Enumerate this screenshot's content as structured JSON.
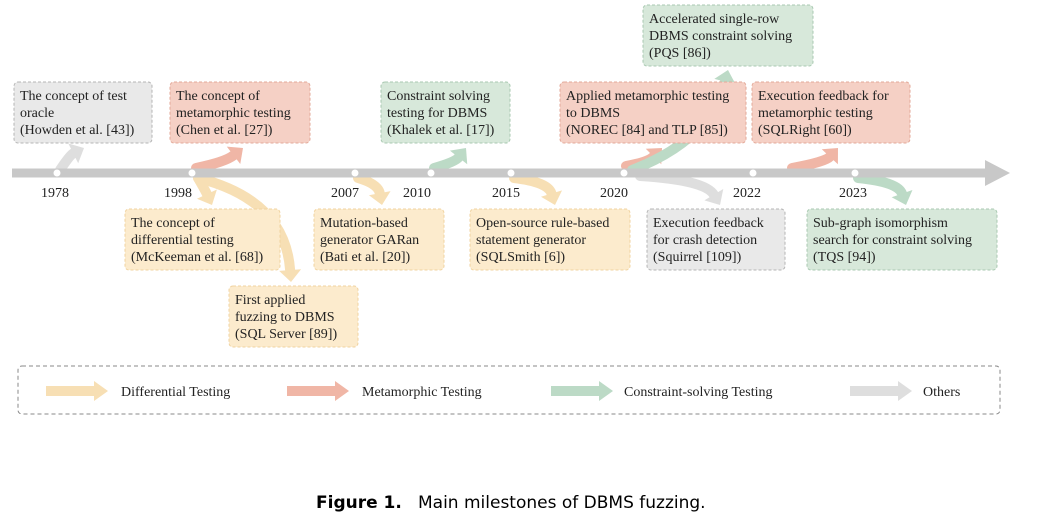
{
  "years": [
    "1978",
    "1998",
    "2007",
    "2010",
    "2015",
    "2020",
    "2022",
    "2023"
  ],
  "milestones": [
    {
      "lines": [
        "The concept of test",
        "oracle",
        "(Howden et al. [43])"
      ]
    },
    {
      "lines": [
        "The concept of",
        "metamorphic testing",
        "(Chen et al. [27])"
      ]
    },
    {
      "lines": [
        "Constraint solving",
        "testing for DBMS",
        "(Khalek et al. [17])"
      ]
    },
    {
      "lines": [
        "Applied metamorphic testing",
        "to DBMS",
        "(NOREC [84] and TLP [85])"
      ]
    },
    {
      "lines": [
        "Accelerated single-row",
        "DBMS constraint solving",
        "(PQS [86])"
      ]
    },
    {
      "lines": [
        "Execution feedback for",
        "metamorphic testing",
        "(SQLRight [60])"
      ]
    },
    {
      "lines": [
        "The concept of",
        "differential testing",
        "(McKeeman et al. [68])"
      ]
    },
    {
      "lines": [
        "First applied",
        "fuzzing to DBMS",
        "(SQL Server [89])"
      ]
    },
    {
      "lines": [
        "Mutation-based",
        "generator GARan",
        "(Bati et al. [20])"
      ]
    },
    {
      "lines": [
        "Open-source rule-based",
        "statement generator",
        "(SQLSmith [6])"
      ]
    },
    {
      "lines": [
        "Execution feedback",
        "for crash detection",
        "(Squirrel [109])"
      ]
    },
    {
      "lines": [
        "Sub-graph isomorphism",
        "search for constraint solving",
        "(TQS [94])"
      ]
    }
  ],
  "legend": [
    "Differential Testing",
    "Metamorphic Testing",
    "Constraint-solving Testing",
    "Others"
  ],
  "caption": {
    "label": "Figure 1.",
    "text": "Main milestones of DBMS fuzzing."
  }
}
